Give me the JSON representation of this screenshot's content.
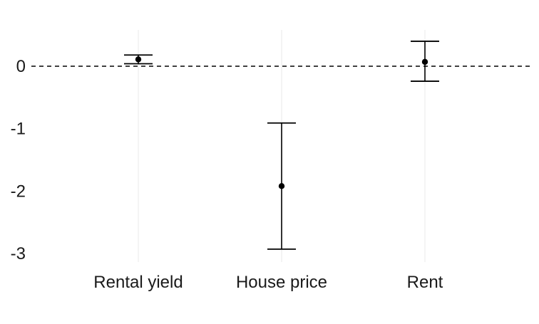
{
  "chart_data": {
    "type": "scatter",
    "subtype": "point-estimate-with-error-bars",
    "title": "",
    "xlabel": "",
    "ylabel": "",
    "categories": [
      "Rental yield",
      "House price",
      "Rent"
    ],
    "series": [
      {
        "estimates": [
          0.11,
          -1.92,
          0.07
        ],
        "lower": [
          0.04,
          -2.93,
          -0.24
        ],
        "upper": [
          0.18,
          -0.91,
          0.4
        ]
      }
    ],
    "y_ticks": [
      0,
      -1,
      -2,
      -3
    ],
    "ylim": [
      -3.05,
      0.55
    ],
    "reference_line": {
      "y": 0,
      "style": "dashed"
    },
    "grid": {
      "vertical_major": true,
      "horizontal": false
    },
    "legend": "none",
    "colors": {
      "marks": "#000000",
      "reference": "#000000",
      "grid": "#ebebeb",
      "text": "#1a1a1a"
    }
  }
}
